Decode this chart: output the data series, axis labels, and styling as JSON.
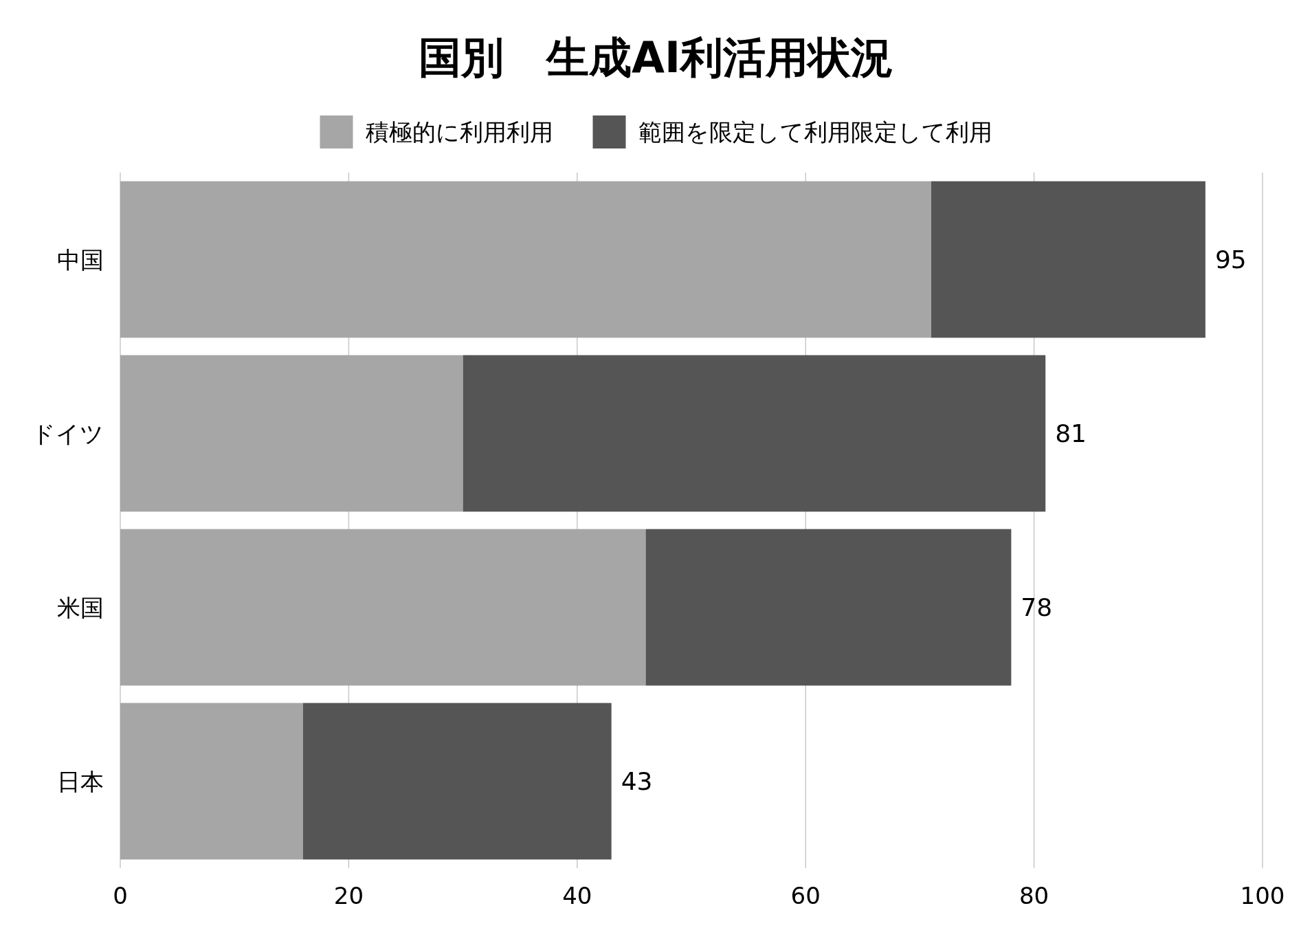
{
  "chart_data": {
    "type": "bar",
    "orientation": "horizontal",
    "stacked": true,
    "title": "国別　生成AI利活用状況",
    "categories": [
      "中国",
      "ドイツ",
      "米国",
      "日本"
    ],
    "series": [
      {
        "name": "積極的に利用利用",
        "color": "#a6a6a6",
        "values": [
          71,
          30,
          46,
          16
        ]
      },
      {
        "name": "範囲を限定して利用限定して利用",
        "color": "#555555",
        "values": [
          24,
          51,
          32,
          27
        ]
      }
    ],
    "totals": [
      "95",
      "81",
      "78",
      "43"
    ],
    "xlim": [
      0,
      100
    ],
    "xticks": [
      0,
      20,
      40,
      60,
      80,
      100
    ],
    "grid": "x",
    "legend": "top"
  }
}
